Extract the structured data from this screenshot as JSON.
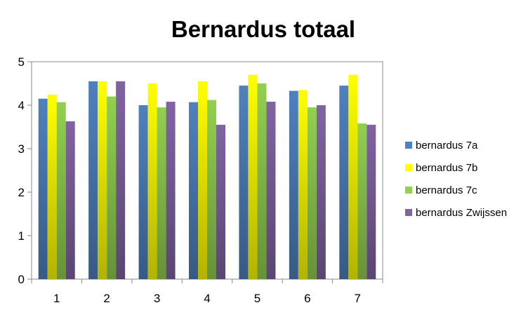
{
  "chart_data": {
    "type": "bar",
    "title": "Bernardus totaal",
    "xlabel": "",
    "ylabel": "",
    "categories": [
      "1",
      "2",
      "3",
      "4",
      "5",
      "6",
      "7"
    ],
    "ylim": [
      0,
      5
    ],
    "yticks": [
      "0",
      "1",
      "2",
      "3",
      "4",
      "5"
    ],
    "grid": false,
    "legend_position": "right",
    "series": [
      {
        "name": "bernardus 7a",
        "color": "#4F81BD",
        "values": [
          4.15,
          4.55,
          4.0,
          4.07,
          4.45,
          4.33,
          4.45
        ]
      },
      {
        "name": "bernardus 7b",
        "color": "#FFFF00",
        "values": [
          4.24,
          4.55,
          4.5,
          4.55,
          4.7,
          4.35,
          4.7
        ]
      },
      {
        "name": "bernardus 7c",
        "color": "#92D050",
        "values": [
          4.07,
          4.2,
          3.95,
          4.12,
          4.5,
          3.95,
          3.58
        ]
      },
      {
        "name": "bernardus Zwijssen",
        "color": "#8064A2",
        "values": [
          3.63,
          4.55,
          4.08,
          3.55,
          4.08,
          4.0,
          3.55
        ]
      }
    ]
  }
}
